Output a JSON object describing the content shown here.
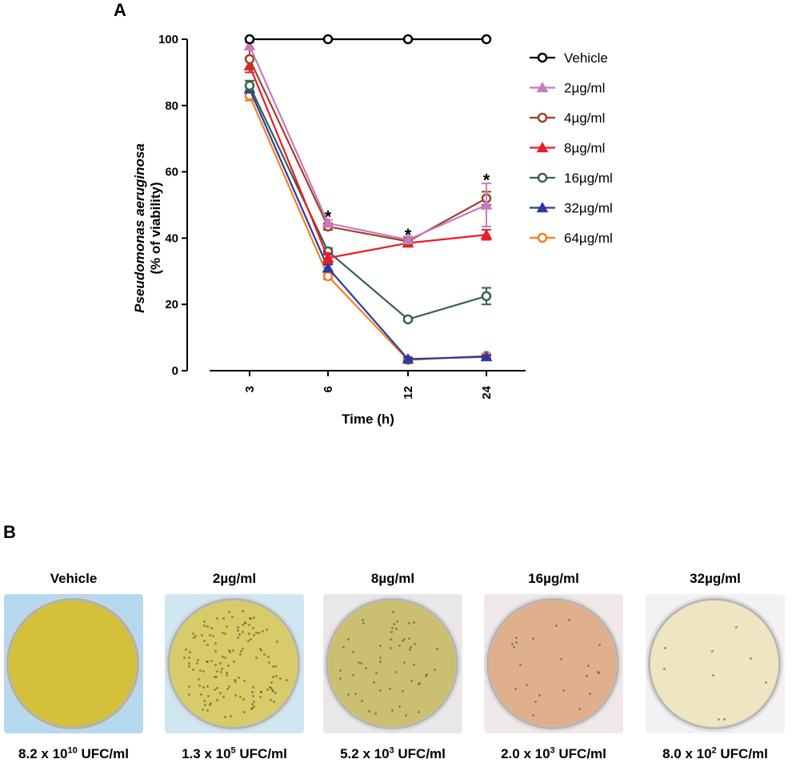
{
  "panel_a_label": "A",
  "panel_b_label": "B",
  "chart_data": {
    "type": "line",
    "x": [
      3,
      6,
      12,
      24
    ],
    "xticklabels": [
      "3",
      "6",
      "12",
      "24"
    ],
    "xlabel": "Time (h)",
    "ylabel_line1": "Pseudomonas aeruginosa",
    "ylabel_line2": "(% of viability)",
    "ylim": [
      0,
      100
    ],
    "yticks": [
      0,
      20,
      40,
      60,
      80,
      100
    ],
    "series": [
      {
        "name": "Vehicle",
        "color": "#000000",
        "marker": "circle-open",
        "values": [
          100,
          100,
          100,
          100
        ],
        "errors": [
          0,
          0,
          0,
          0
        ]
      },
      {
        "name": "2µg/ml",
        "color": "#c67bbf",
        "marker": "triangle",
        "values": [
          98,
          44.5,
          39.5,
          50
        ],
        "errors": [
          1,
          1,
          1,
          6.5
        ]
      },
      {
        "name": "4µg/ml",
        "color": "#a13f2b",
        "marker": "circle-open",
        "values": [
          94,
          43.5,
          39,
          52
        ],
        "errors": [
          3,
          1,
          1,
          2
        ]
      },
      {
        "name": "8µg/ml",
        "color": "#ee1c24",
        "marker": "triangle",
        "values": [
          92,
          34,
          38.5,
          41
        ],
        "errors": [
          2,
          1.5,
          1,
          1.5
        ]
      },
      {
        "name": "16µg/ml",
        "color": "#35634c",
        "marker": "circle-open",
        "values": [
          86,
          36,
          15.5,
          22.5
        ],
        "errors": [
          1.5,
          1,
          0.5,
          2.5
        ]
      },
      {
        "name": "32µg/ml",
        "color": "#2b3aa3",
        "marker": "triangle",
        "values": [
          85,
          31,
          3.5,
          4.2
        ],
        "errors": [
          1,
          1,
          0.5,
          0.5
        ]
      },
      {
        "name": "64µg/ml",
        "color": "#f57f20",
        "marker": "circle-open",
        "values": [
          83,
          28.5,
          3.2,
          4.5
        ],
        "errors": [
          1.5,
          1,
          0.5,
          0.5
        ]
      }
    ],
    "annotations": [
      {
        "text": "*",
        "x": 6,
        "y": 48
      },
      {
        "text": "*",
        "x": 12,
        "y": 42.5
      },
      {
        "text": "*",
        "x": 24,
        "y": 59
      }
    ],
    "legend_position": "right"
  },
  "plates": [
    {
      "title": "Vehicle",
      "cfu_mantissa": "8.2 x 10",
      "cfu_exponent": "10",
      "cfu_unit": " UFC/ml",
      "tint": "#d4c03a",
      "colonies": 0
    },
    {
      "title": "2µg/ml",
      "cfu_mantissa": "1.3 x 10",
      "cfu_exponent": "5",
      "cfu_unit": " UFC/ml",
      "tint": "#d8cb6a",
      "colonies": 140
    },
    {
      "title": "8µg/ml",
      "cfu_mantissa": "5.2 x 10",
      "cfu_exponent": "3",
      "cfu_unit": " UFC/ml",
      "tint": "#cdbf72",
      "colonies": 55
    },
    {
      "title": "16µg/ml",
      "cfu_mantissa": "2.0 x 10",
      "cfu_exponent": "3",
      "cfu_unit": " UFC/ml",
      "tint": "#e0b08c",
      "colonies": 22
    },
    {
      "title": "32µg/ml",
      "cfu_mantissa": "8.0 x 10",
      "cfu_exponent": "2",
      "cfu_unit": " UFC/ml",
      "tint": "#efe5c0",
      "colonies": 9
    }
  ]
}
